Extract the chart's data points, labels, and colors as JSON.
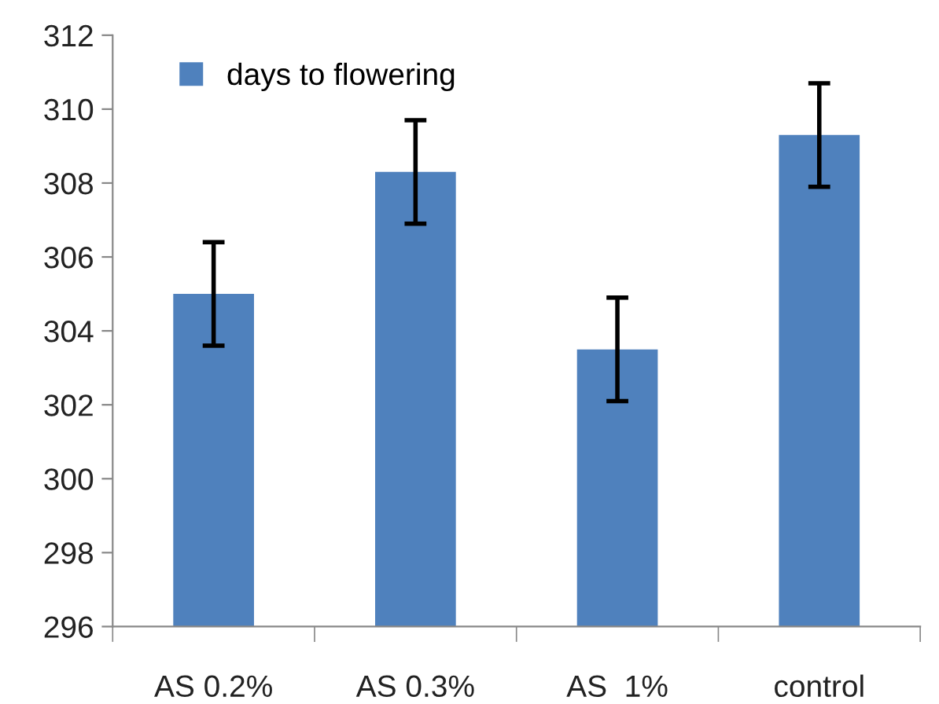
{
  "chart_data": {
    "type": "bar",
    "categories": [
      "AS 0.2%",
      "AS 0.3%",
      "AS  1%",
      "control"
    ],
    "series": [
      {
        "name": "days to flowering",
        "color": "#4f81bd",
        "values": [
          305.0,
          308.3,
          303.5,
          309.3
        ],
        "errors": [
          1.4,
          1.4,
          1.4,
          1.4
        ]
      }
    ],
    "ylim": [
      296,
      312
    ],
    "yticks": [
      296,
      298,
      300,
      302,
      304,
      306,
      308,
      310,
      312
    ],
    "grid": false,
    "legend": "top left"
  }
}
